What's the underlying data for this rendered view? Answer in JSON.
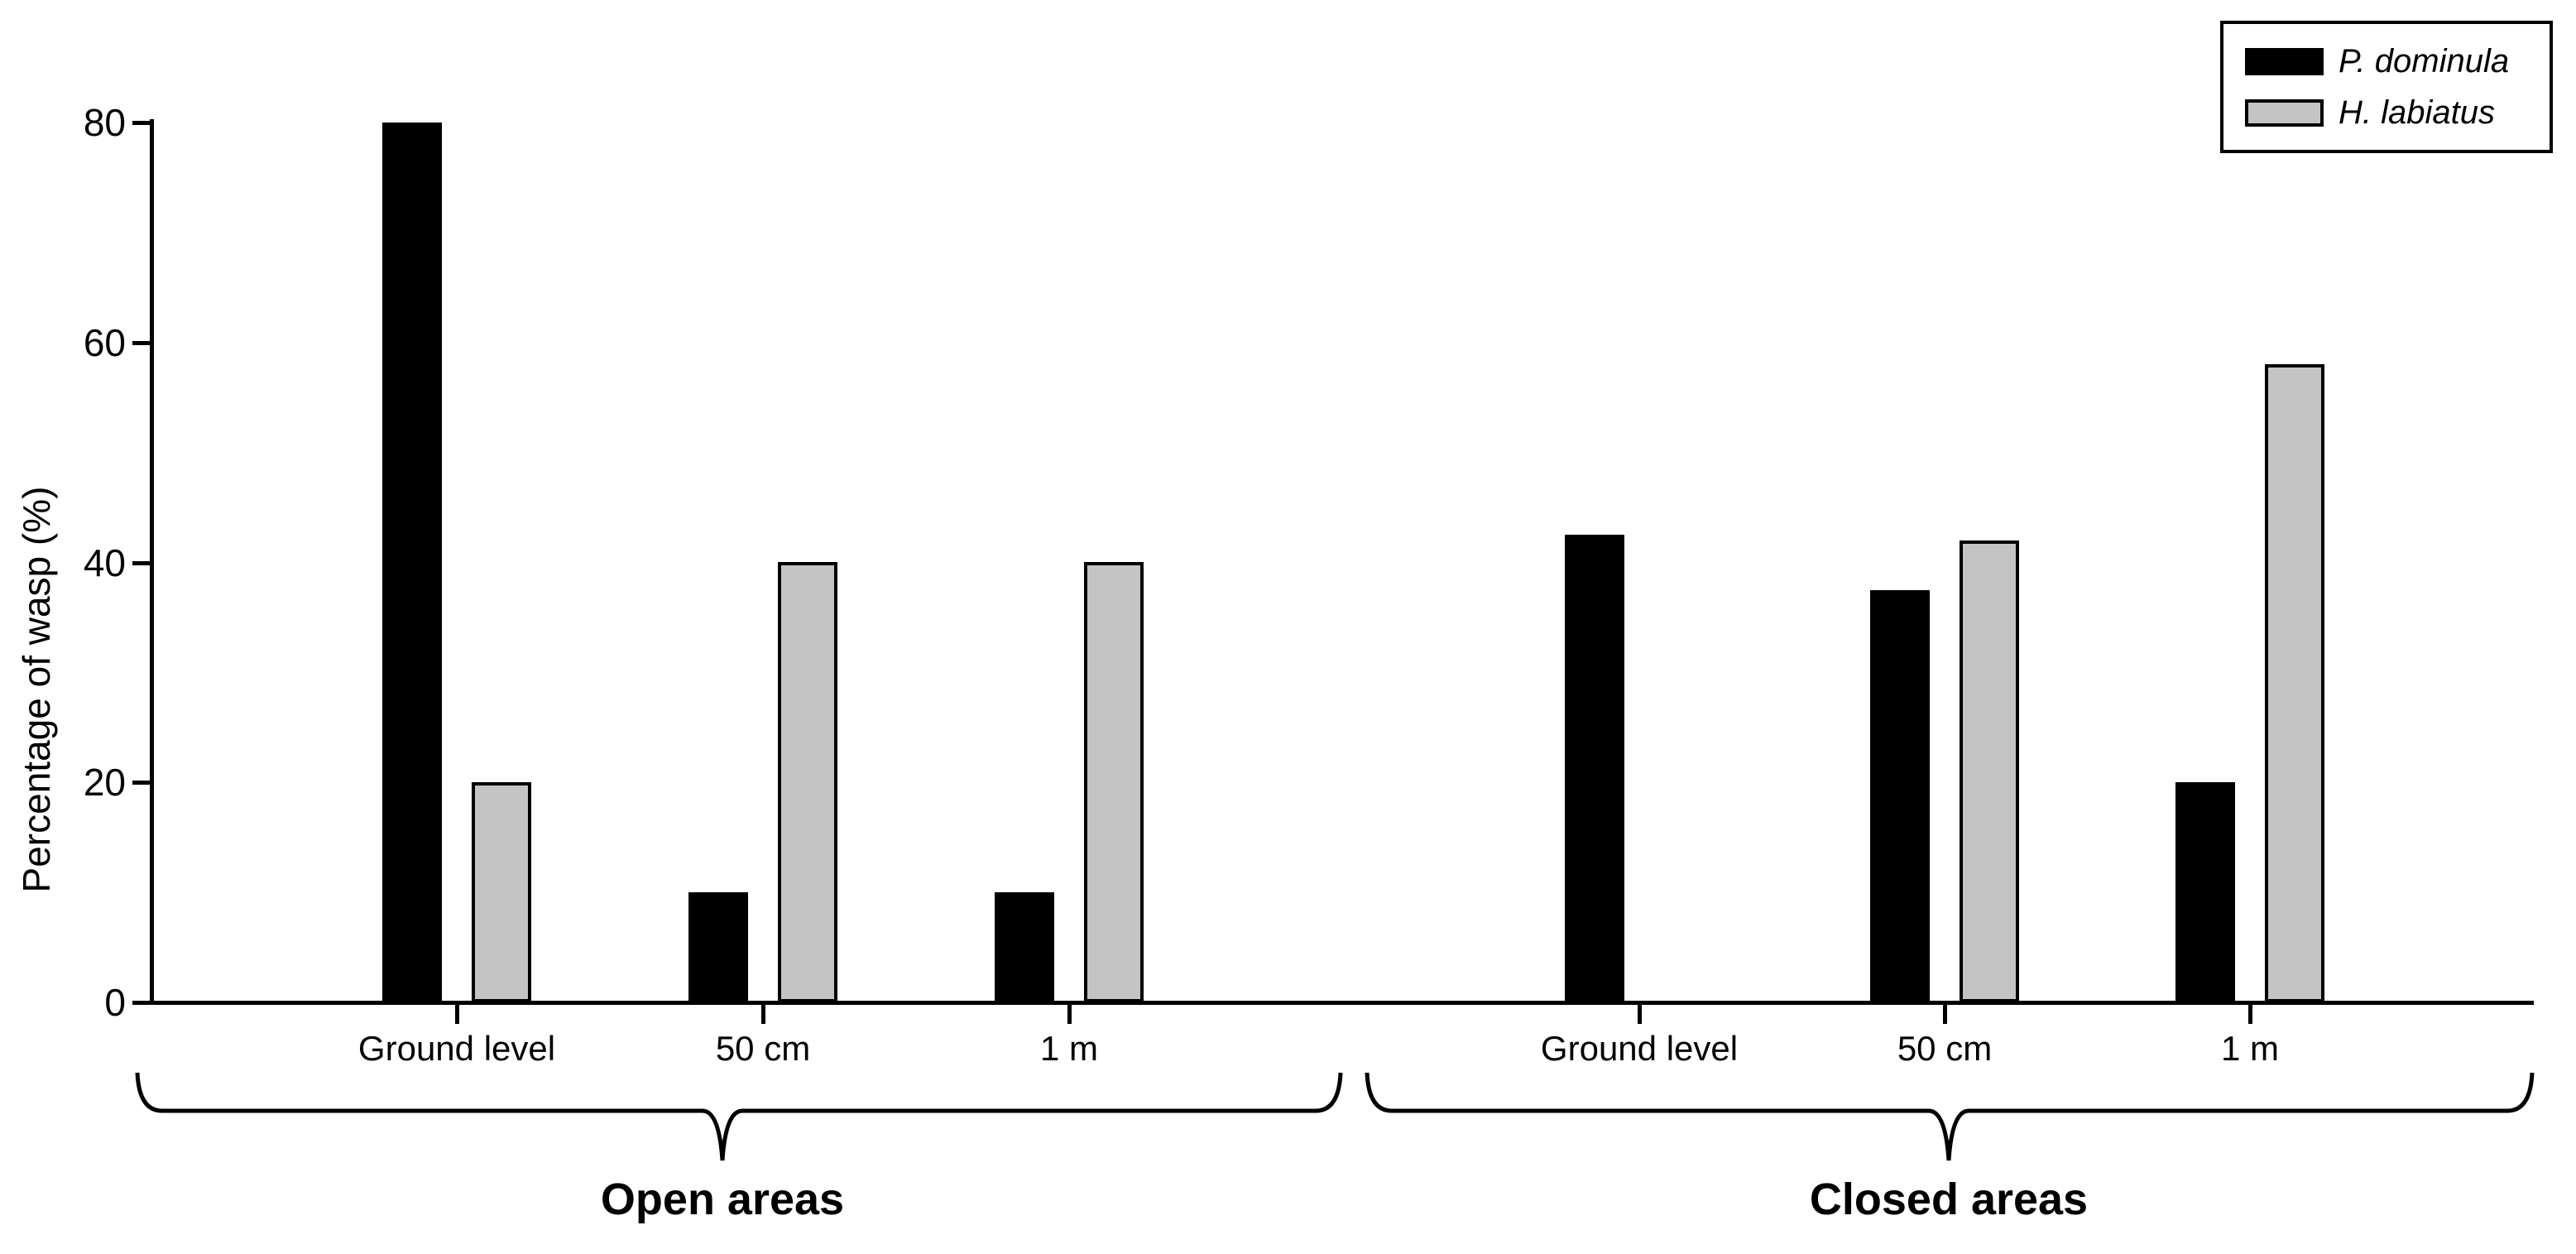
{
  "figure": {
    "background": "#ffffff"
  },
  "chart_data": {
    "type": "bar",
    "title": "",
    "xlabel": "",
    "ylabel": "Percentage of wasp (%)",
    "ylim": [
      0,
      80
    ],
    "y_ticks": [
      0,
      20,
      40,
      60,
      80
    ],
    "grid": false,
    "legend_position": "top-right",
    "groups": [
      {
        "label": "Open areas",
        "categories": [
          "Ground level",
          "50 cm",
          "1 m"
        ],
        "series": [
          {
            "name": "P. dominula",
            "color": "#000000",
            "values": [
              80,
              10,
              10
            ]
          },
          {
            "name": "H. labiatus",
            "color": "#c4c4c4",
            "values": [
              20,
              40,
              40
            ]
          }
        ]
      },
      {
        "label": "Closed areas",
        "categories": [
          "Ground level",
          "50 cm",
          "1 m"
        ],
        "series": [
          {
            "name": "P. dominula",
            "color": "#000000",
            "values": [
              42.5,
              37.5,
              20
            ]
          },
          {
            "name": "H. labiatus",
            "color": "#c4c4c4",
            "values": [
              0,
              42,
              58
            ]
          }
        ]
      }
    ],
    "legend": {
      "entries": [
        {
          "label": "P. dominula",
          "color": "#000000"
        },
        {
          "label": "H. labiatus",
          "color": "#c4c4c4"
        }
      ]
    }
  }
}
